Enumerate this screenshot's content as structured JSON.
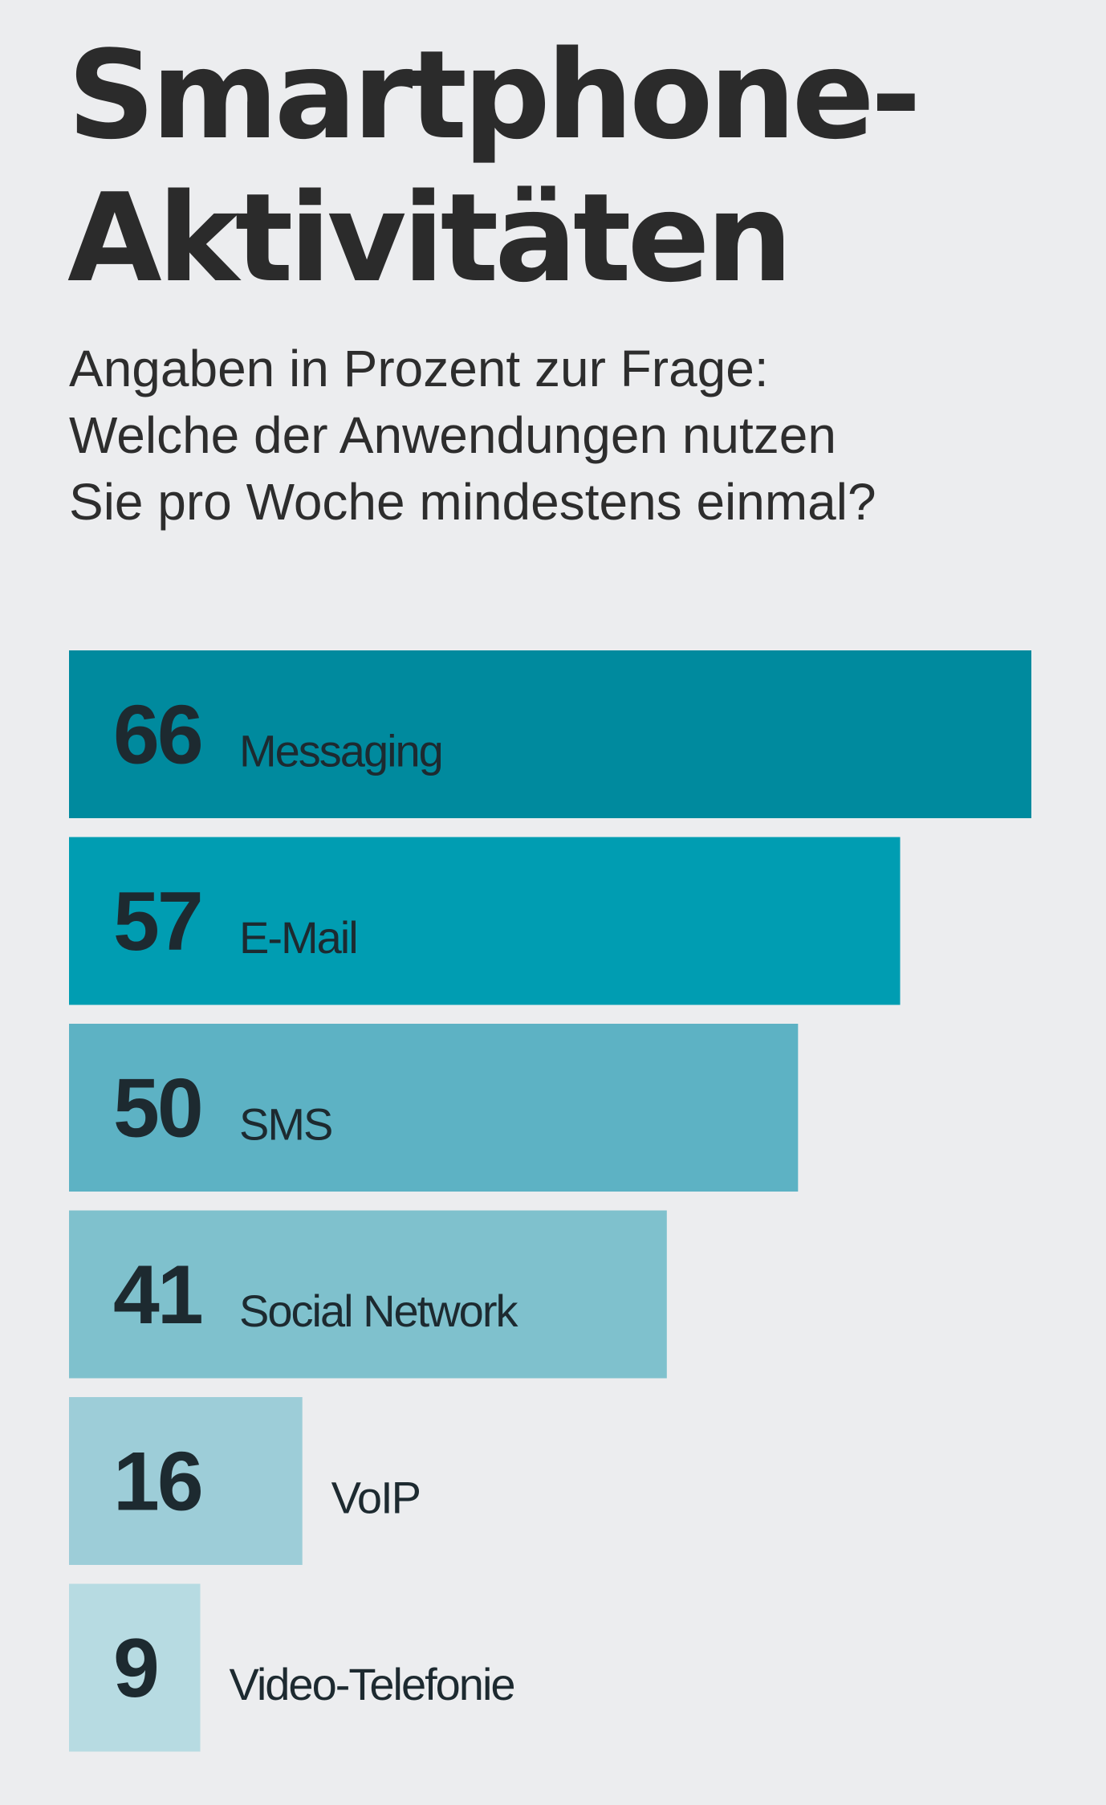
{
  "chart_data": {
    "type": "bar",
    "orientation": "horizontal",
    "title_lines": [
      "Smartphone-",
      "Aktivitäten"
    ],
    "subtitle_lines": [
      "Angaben in Prozent zur Frage:",
      "Welche der Anwendungen nutzen",
      "Sie pro Woche mindestens einmal?"
    ],
    "unit": "%",
    "categories": [
      "Messaging",
      "E-Mail",
      "SMS",
      "Social Network",
      "VoIP",
      "Video-Telefonie"
    ],
    "values": [
      66,
      57,
      50,
      41,
      16,
      9
    ],
    "colors": [
      "#008a9e",
      "#009db2",
      "#5db2c4",
      "#7fc1cd",
      "#9dcdd8",
      "#b7dbe2"
    ],
    "xlim": [
      0,
      66
    ],
    "grid": false,
    "legend": "none"
  }
}
